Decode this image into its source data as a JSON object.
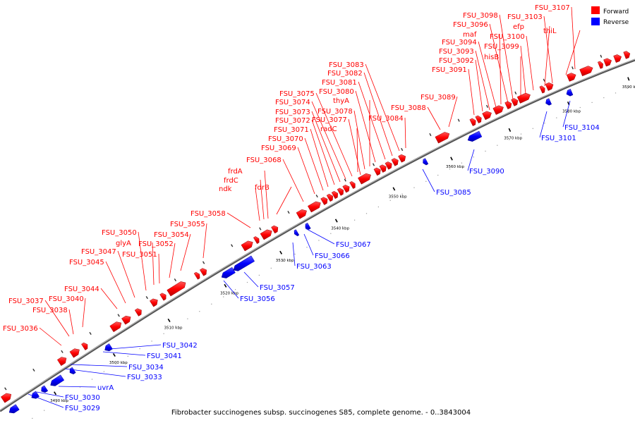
{
  "caption": "Fibrobacter succinogenes subsp. succinogenes S85, complete genome. - 0..3843004",
  "legend": [
    {
      "label": "Forward",
      "color": "#ff0000"
    },
    {
      "label": "Reverse",
      "color": "#0000ff"
    }
  ],
  "colors": {
    "forward": "#ff0000",
    "reverse": "#0000ff",
    "axis": "#888888"
  },
  "ticks": [
    "3490 kbp",
    "3500 kbp",
    "3510 kbp",
    "3520 kbp",
    "3530 kbp",
    "3540 kbp",
    "3550 kbp",
    "3560 kbp",
    "3570 kbp",
    "3580 kbp",
    "3590 kbp"
  ],
  "forward_labels": [
    "FSU_3036",
    "FSU_3037",
    "FSU_3038",
    "FSU_3040",
    "FSU_3044",
    "FSU_3045",
    "FSU_3047",
    "FSU_3050",
    "glyA",
    "FSU_3051",
    "FSU_3052",
    "FSU_3054",
    "FSU_3055",
    "FSU_3058",
    "ndk",
    "frdC",
    "frdA",
    "fdrB",
    "FSU_3068",
    "FSU_3069",
    "FSU_3070",
    "FSU_3071",
    "FSU_3072",
    "FSU_3073",
    "FSU_3074",
    "FSU_3075",
    "FSU_3077",
    "radC",
    "FSU_3078",
    "thyA",
    "FSU_3080",
    "FSU_3081",
    "FSU_3082",
    "FSU_3083",
    "FSU_3084",
    "FSU_3088",
    "FSU_3089",
    "FSU_3091",
    "FSU_3092",
    "FSU_3093",
    "FSU_3094",
    "maf",
    "FSU_3096",
    "FSU_3098",
    "hisB",
    "FSU_3099",
    "FSU_3100",
    "efp",
    "FSU_3103",
    "thiL",
    "FSU_3107"
  ],
  "reverse_labels": [
    "FSU_3029",
    "FSU_3030",
    "uvrA",
    "FSU_3033",
    "FSU_3034",
    "FSU_3041",
    "FSU_3042",
    "FSU_3056",
    "FSU_3057",
    "FSU_3063",
    "FSU_3066",
    "FSU_3067",
    "FSU_3085",
    "FSU_3090",
    "FSU_3101",
    "FSU_3104"
  ]
}
